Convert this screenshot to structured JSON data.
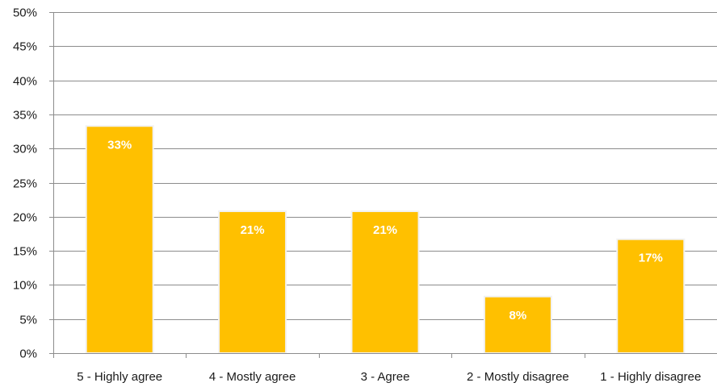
{
  "chart_data": {
    "type": "bar",
    "title": "",
    "xlabel": "",
    "ylabel": "",
    "categories": [
      "5 - Highly agree",
      "4 - Mostly agree",
      "3 - Agree",
      "2 - Mostly disagree",
      "1 - Highly disagree"
    ],
    "values": [
      33.3,
      20.8,
      20.8,
      8.3,
      16.7
    ],
    "data_labels": [
      "33%",
      "21%",
      "21%",
      "8%",
      "17%"
    ],
    "ylim": [
      0,
      50
    ],
    "y_ticks": [
      "0%",
      "5%",
      "10%",
      "15%",
      "20%",
      "25%",
      "30%",
      "35%",
      "40%",
      "45%",
      "50%"
    ],
    "y_tick_values": [
      0,
      5,
      10,
      15,
      20,
      25,
      30,
      35,
      40,
      45,
      50
    ],
    "grid": true,
    "legend": "none",
    "colors": {
      "bar": "#FFC000",
      "bar_border": "#f2f2f2",
      "grid": "#8c8c8c",
      "axis": "#8c8c8c",
      "text": "#1a1a1a",
      "data_label": "#ffffff"
    }
  }
}
